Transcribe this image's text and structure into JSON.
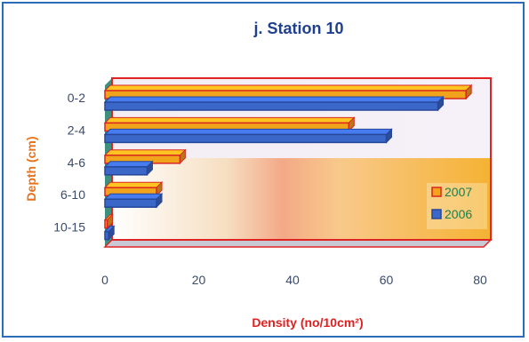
{
  "chart_data": {
    "type": "bar",
    "orientation": "horizontal",
    "title": "j. Station 10",
    "xlabel": "Density (no/10cm²)",
    "ylabel": "Depth (cm)",
    "categories": [
      "0-2",
      "2-4",
      "4-6",
      "6-10",
      "10-15"
    ],
    "series": [
      {
        "name": "2007",
        "values": [
          77,
          52,
          16,
          11,
          0.5
        ],
        "color": "#f2a31c",
        "edge": "#d8261e"
      },
      {
        "name": "2006",
        "values": [
          71,
          60,
          9,
          11,
          0.8
        ],
        "color": "#3a67c8",
        "edge": "#26479a"
      }
    ],
    "xlim": [
      0,
      80
    ],
    "xticks": [
      "0",
      "20",
      "40",
      "60",
      "80"
    ],
    "legend": "right",
    "grid": false,
    "plot_frame_color": "#e02424"
  }
}
